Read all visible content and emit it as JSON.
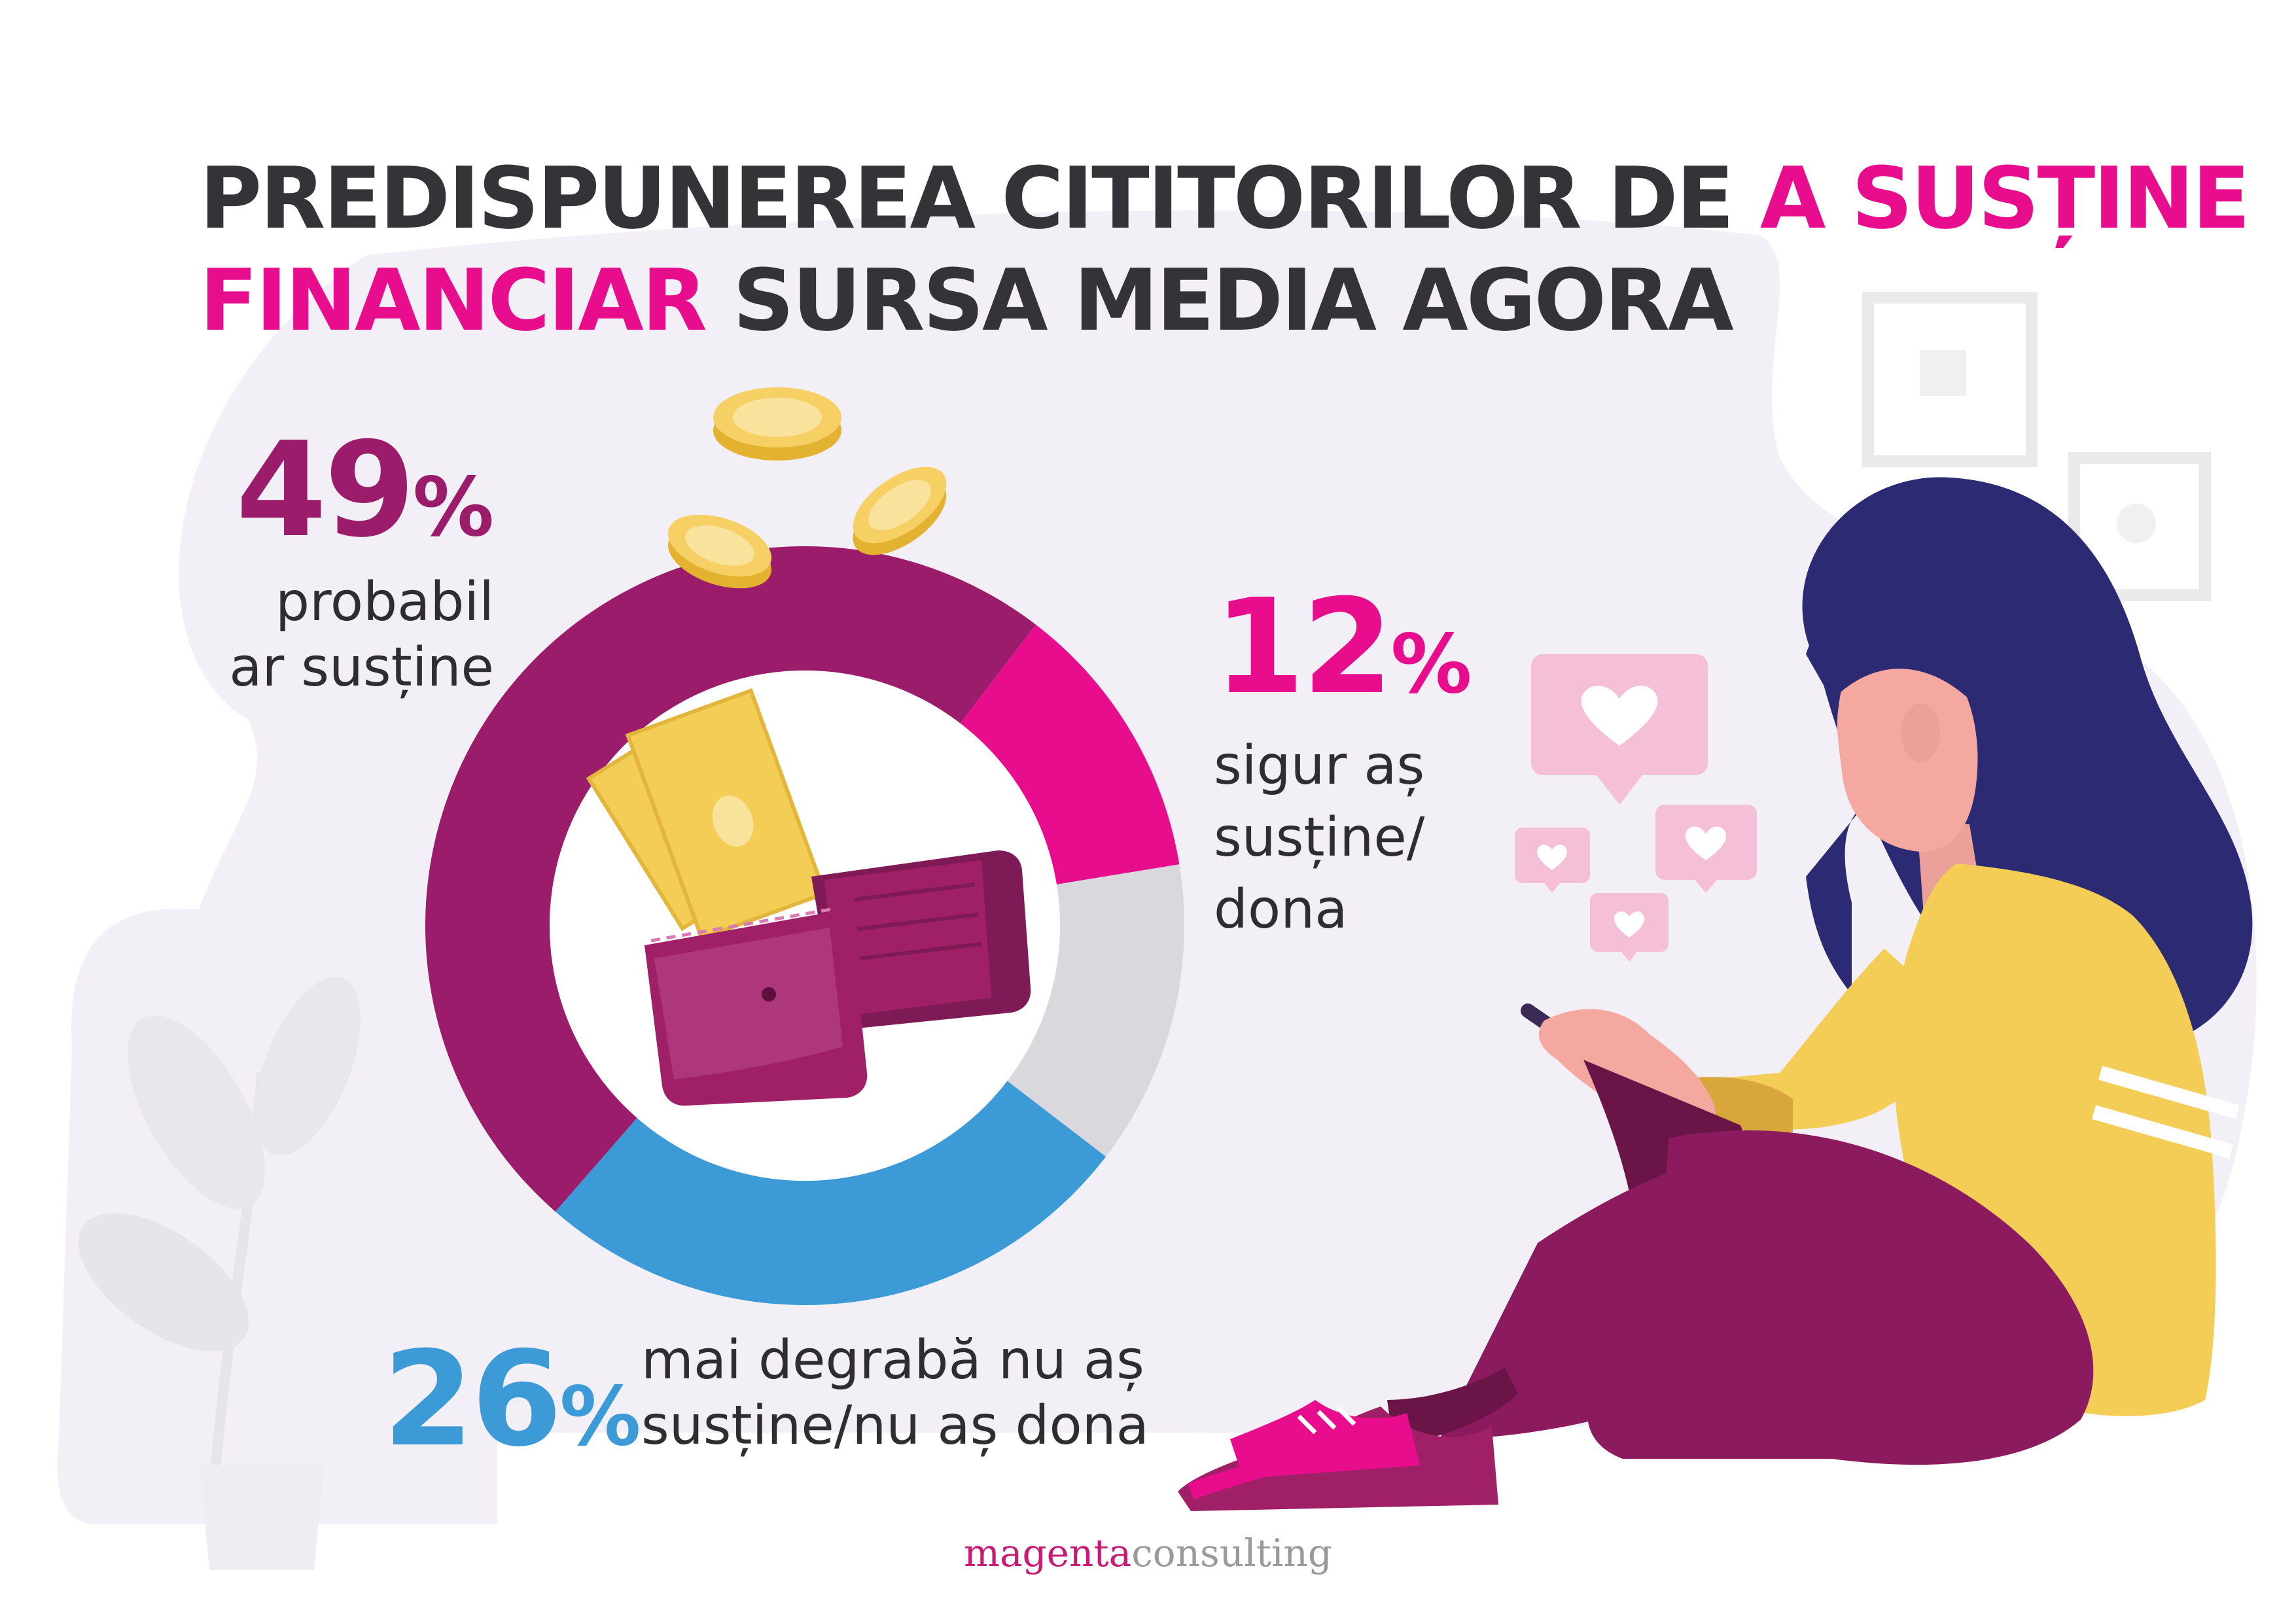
{
  "title": {
    "line1_dark": "PREDISPUNEREA CITITORILOR DE",
    "line1_highlight": "A SUSȚINE",
    "line2_highlight": "FINANCIAR",
    "line2_dark": "SURSA MEDIA AGORA"
  },
  "stats": {
    "s49": {
      "value": "49",
      "unit": "%",
      "label_1": "probabil",
      "label_2": "ar susține"
    },
    "s12": {
      "value": "12",
      "unit": "%",
      "label_1": "sigur aș",
      "label_2": "susține/",
      "label_3": "dona"
    },
    "s26": {
      "value": "26",
      "unit": "%",
      "label_1": "mai degrabă nu aș",
      "label_2": "susține/nu aș dona"
    }
  },
  "brand": {
    "part1": "magenta",
    "part2": "consulting"
  },
  "colors": {
    "dark_text": "#343337",
    "highlight": "#e80d8c",
    "probabil": "#9b1c6a",
    "sigur": "#e80d8c",
    "nu": "#3c9ad6",
    "unlabeled": "#d9d8dc",
    "background_blob": "#f2f0f6"
  },
  "icons": [
    "coin-icon",
    "wallet-icon",
    "banknote-icon",
    "heart-bubble-icon",
    "plant-icon",
    "picture-frame-icon",
    "woman-with-phone-illustration"
  ],
  "chart_data": {
    "type": "pie",
    "variant": "donut",
    "categories": [
      "sigur aș susține/dona",
      "unlabeled",
      "mai degrabă nu aș susține/nu aș dona",
      "probabil ar susține"
    ],
    "values": [
      12,
      13,
      26,
      49
    ],
    "colors": [
      "#e80d8c",
      "#d9d8dc",
      "#3c9ad6",
      "#9b1c6a"
    ],
    "title": "",
    "legend": "none"
  }
}
